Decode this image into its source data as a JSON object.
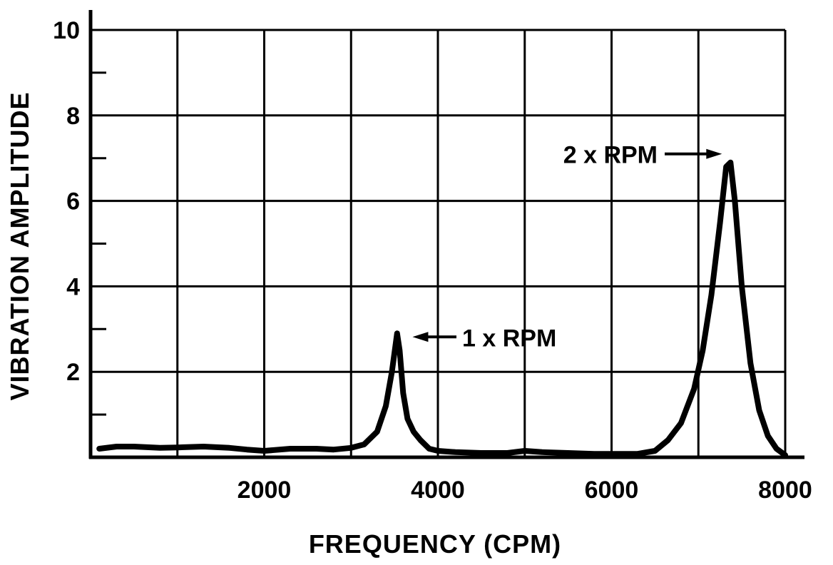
{
  "chart_data": {
    "type": "line",
    "title": "",
    "xlabel": "FREQUENCY (CPM)",
    "ylabel": "VIBRATION AMPLITUDE",
    "xlim": [
      0,
      8000
    ],
    "ylim": [
      0,
      10
    ],
    "x_ticks": [
      0,
      1000,
      2000,
      3000,
      4000,
      5000,
      6000,
      7000,
      8000
    ],
    "x_tick_labels": [
      "",
      "",
      "2000",
      "",
      "4000",
      "",
      "6000",
      "",
      "8000"
    ],
    "y_ticks": [
      0,
      2,
      4,
      6,
      8,
      10
    ],
    "y_tick_labels": [
      "",
      "2",
      "4",
      "6",
      "8",
      "10"
    ],
    "y_minor_ticks": [
      1,
      3,
      5,
      7,
      9
    ],
    "grid": true,
    "series": [
      {
        "x": [
          100,
          300,
          500,
          800,
          1000,
          1300,
          1600,
          1800,
          2000,
          2300,
          2600,
          2800,
          3000,
          3150,
          3300,
          3400,
          3470,
          3530,
          3560,
          3600,
          3650,
          3720,
          3800,
          3900,
          4000,
          4200,
          4500,
          4800,
          5000,
          5200,
          5500,
          5800,
          6000,
          6300,
          6500,
          6650,
          6800,
          6950,
          7050,
          7150,
          7250,
          7320,
          7370,
          7420,
          7500,
          7600,
          7700,
          7800,
          7900,
          8000
        ],
        "y": [
          0.2,
          0.25,
          0.25,
          0.22,
          0.23,
          0.25,
          0.22,
          0.18,
          0.15,
          0.2,
          0.2,
          0.18,
          0.22,
          0.3,
          0.6,
          1.2,
          2.0,
          2.9,
          2.5,
          1.5,
          0.9,
          0.6,
          0.4,
          0.2,
          0.15,
          0.12,
          0.1,
          0.1,
          0.15,
          0.12,
          0.1,
          0.08,
          0.08,
          0.08,
          0.15,
          0.4,
          0.8,
          1.6,
          2.5,
          3.8,
          5.5,
          6.8,
          6.9,
          6.0,
          4.0,
          2.2,
          1.1,
          0.5,
          0.2,
          0.05
        ]
      }
    ],
    "annotations": [
      {
        "text": "1 x RPM",
        "x": 3560,
        "y": 2.9
      },
      {
        "text": "2 x RPM",
        "x": 7370,
        "y": 6.9
      }
    ]
  }
}
